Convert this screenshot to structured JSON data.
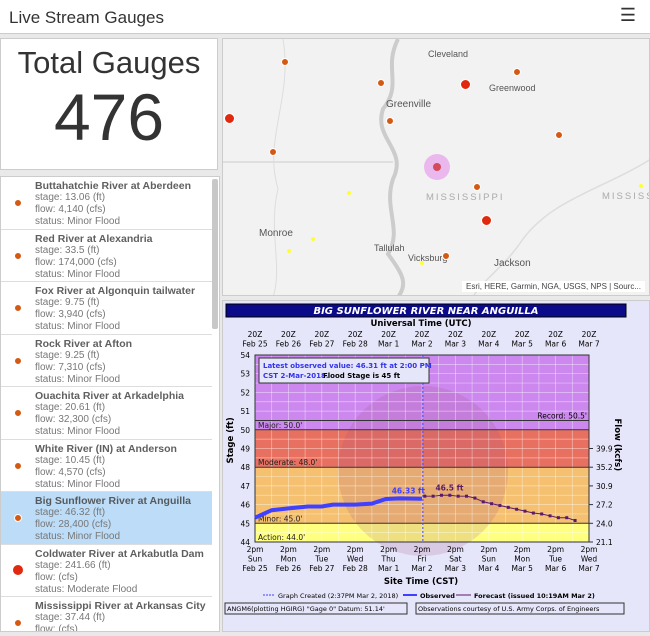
{
  "header": {
    "title": "Live Stream Gauges",
    "menu_icon": "hamburger-icon"
  },
  "total": {
    "label": "Total Gauges",
    "value": "476"
  },
  "gauges": [
    {
      "name": "Buttahatchie River at Aberdeen",
      "stage": "stage: 13.06 (ft)",
      "flow": "flow: 4,140 (cfs)",
      "status": "status: Minor Flood"
    },
    {
      "name": "Red River at Alexandria",
      "stage": "stage: 33.5 (ft)",
      "flow": "flow: 174,000 (cfs)",
      "status": "status: Minor Flood"
    },
    {
      "name": "Fox River at Algonquin tailwater",
      "stage": "stage: 9.75 (ft)",
      "flow": "flow: 3,940 (cfs)",
      "status": "status: Minor Flood"
    },
    {
      "name": "Rock River at Afton",
      "stage": "stage: 9.25 (ft)",
      "flow": "flow: 7,310 (cfs)",
      "status": "status: Minor Flood"
    },
    {
      "name": "Ouachita River at Arkadelphia",
      "stage": "stage: 20.61 (ft)",
      "flow": "flow: 32,300 (cfs)",
      "status": "status: Minor Flood"
    },
    {
      "name": "White River (IN) at Anderson",
      "stage": "stage: 10.45 (ft)",
      "flow": "flow: 4,570 (cfs)",
      "status": "status: Minor Flood"
    },
    {
      "name": "Big Sunflower River at Anguilla",
      "stage": "stage: 46.32 (ft)",
      "flow": "flow: 28,400 (cfs)",
      "status": "status: Minor Flood",
      "selected": true
    },
    {
      "name": "Coldwater River at Arkabutla Dam",
      "stage": "stage: 241.66 (ft)",
      "flow": "flow: (cfs)",
      "status": "status: Moderate Flood"
    },
    {
      "name": "Mississippi River at Arkansas City",
      "stage": "stage: 37.44 (ft)",
      "flow": "flow: (cfs)",
      "status": ""
    }
  ],
  "colors": {
    "minor": "#d45a14",
    "moderate": "#e0290e",
    "selected": "#bcdcf7",
    "observed": "#4040ff",
    "forecast": "#5a1a6a"
  },
  "map": {
    "cities": [
      "Cleveland",
      "Greenwood",
      "Greenville",
      "Monroe",
      "Tallulah",
      "Vicksburg",
      "Jackson"
    ],
    "states": [
      "MISSISSIPPI",
      "MISSISS"
    ],
    "attribution": "Esri, HERE, Garmin, NGA, USGS, NPS | Sourc..."
  },
  "chart_data": {
    "type": "line",
    "title": "BIG SUNFLOWER RIVER NEAR ANGUILLA",
    "top_axis_label": "Universal Time (UTC)",
    "top_ticks": [
      [
        "20Z",
        "Feb 25"
      ],
      [
        "20Z",
        "Feb 26"
      ],
      [
        "20Z",
        "Feb 27"
      ],
      [
        "20Z",
        "Feb 28"
      ],
      [
        "20Z",
        "Mar 1"
      ],
      [
        "20Z",
        "Mar 2"
      ],
      [
        "20Z",
        "Mar 3"
      ],
      [
        "20Z",
        "Mar 4"
      ],
      [
        "20Z",
        "Mar 5"
      ],
      [
        "20Z",
        "Mar 6"
      ],
      [
        "20Z",
        "Mar 7"
      ]
    ],
    "xlabel": "Site Time (CST)",
    "x_ticks": [
      [
        "2pm",
        "Sun",
        "Feb 25"
      ],
      [
        "2pm",
        "Mon",
        "Feb 26"
      ],
      [
        "2pm",
        "Tue",
        "Feb 27"
      ],
      [
        "2pm",
        "Wed",
        "Feb 28"
      ],
      [
        "2pm",
        "Thu",
        "Mar 1"
      ],
      [
        "2pm",
        "Fri",
        "Mar 2"
      ],
      [
        "2pm",
        "Sat",
        "Mar 3"
      ],
      [
        "2pm",
        "Sun",
        "Mar 4"
      ],
      [
        "2pm",
        "Mon",
        "Mar 5"
      ],
      [
        "2pm",
        "Tue",
        "Mar 6"
      ],
      [
        "2pm",
        "Wed",
        "Mar 7"
      ]
    ],
    "xlim": [
      "2018-02-25T14:00",
      "2018-03-07T14:00"
    ],
    "ylabel": "Stage (ft)",
    "ylim": [
      44,
      54
    ],
    "y_ticks": [
      44,
      45,
      46,
      47,
      48,
      49,
      50,
      51,
      52,
      53,
      54
    ],
    "y2label": "Flow (kcfs)",
    "y2_ticks": [
      {
        "stage": 44,
        "label": "21.1"
      },
      {
        "stage": 45,
        "label": "24.0"
      },
      {
        "stage": 46,
        "label": "27.2"
      },
      {
        "stage": 47,
        "label": "30.9"
      },
      {
        "stage": 48,
        "label": "35.2"
      },
      {
        "stage": 49,
        "label": "39.9"
      }
    ],
    "grid": true,
    "bands": [
      {
        "label": "Action: 44.0'",
        "from": 44,
        "to": 45,
        "color": "#ffff80"
      },
      {
        "label": "Minor: 45.0'",
        "from": 45,
        "to": 48,
        "color": "#f5c070"
      },
      {
        "label": "Moderate: 48.0'",
        "from": 48,
        "to": 50,
        "color": "#e87060"
      },
      {
        "label": "Major: 50.0'",
        "from": 50,
        "to": 54,
        "color": "#cc88ee"
      }
    ],
    "record": {
      "label": "Record: 50.5'",
      "value": 50.5
    },
    "graph_created": "2018-03-02T14:37",
    "annotation": {
      "line1": "Latest observed value: 46.31 ft at 2:00 PM",
      "line2": "CST 2-Mar-2018.",
      "line2b": "Flood Stage is 45 ft"
    },
    "series": [
      {
        "name": "Observed",
        "label": "46.33 ft",
        "x": [
          "2018-02-25T14:00",
          "2018-02-26T02:00",
          "2018-02-26T14:00",
          "2018-02-27T04:00",
          "2018-02-27T14:00",
          "2018-02-27T22:00",
          "2018-02-28T14:00",
          "2018-03-01T02:00",
          "2018-03-01T12:00",
          "2018-03-01T22:00",
          "2018-03-02T14:00"
        ],
        "y": [
          45.3,
          45.7,
          45.8,
          45.9,
          45.9,
          46.0,
          46.0,
          46.05,
          46.3,
          46.33,
          46.31
        ]
      },
      {
        "name": "Forecast (issued 10:19AM Mar 2)",
        "label": "46.5 ft",
        "x": [
          "2018-03-02T16:00",
          "2018-03-02T22:00",
          "2018-03-03T04:00",
          "2018-03-03T10:00",
          "2018-03-03T16:00",
          "2018-03-03T22:00",
          "2018-03-04T04:00",
          "2018-03-04T10:00",
          "2018-03-04T16:00",
          "2018-03-04T22:00",
          "2018-03-05T04:00",
          "2018-03-05T10:00",
          "2018-03-05T16:00",
          "2018-03-05T22:00",
          "2018-03-06T04:00",
          "2018-03-06T10:00",
          "2018-03-06T16:00",
          "2018-03-06T22:00",
          "2018-03-07T04:00"
        ],
        "y": [
          46.45,
          46.45,
          46.5,
          46.5,
          46.45,
          46.45,
          46.35,
          46.15,
          46.05,
          45.95,
          45.85,
          45.75,
          45.65,
          45.55,
          45.5,
          45.4,
          45.3,
          45.3,
          45.15
        ]
      }
    ],
    "legend": {
      "created": "Graph Created (2:37PM Mar 2, 2018)",
      "observed": "Observed",
      "forecast": "Forecast (issued 10:19AM Mar 2)"
    },
    "footer_left": "ANGM6(plotting HGIRG) \"Gage 0\" Datum: 51.14'",
    "footer_right": "Observations courtesy of U.S. Army Corps. of Engineers"
  }
}
